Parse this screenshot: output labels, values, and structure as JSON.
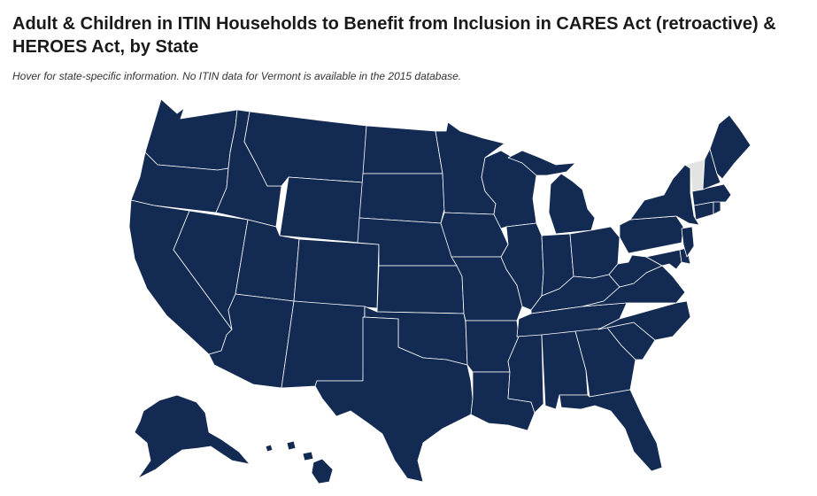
{
  "header": {
    "title": "Adult & Children in ITIN Households to Benefit from Inclusion in CARES Act (retroactive) & HEROES Act, by State",
    "subtitle": "Hover for state-specific information. No ITIN data for Vermont is available in the 2015 database."
  },
  "colors": {
    "state_fill": "#132a52",
    "no_data_fill": "#e3e3e3",
    "border": "#ffffff"
  },
  "map": {
    "no_data_states": [
      "vermont"
    ]
  }
}
